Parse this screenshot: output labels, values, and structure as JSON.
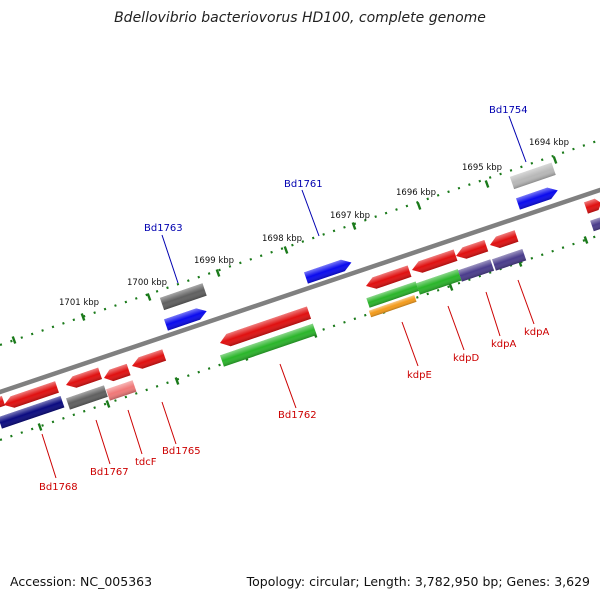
{
  "title": "Bdellovibrio bacteriovorus HD100, complete genome",
  "footer": {
    "accession": "Accession: NC_005363",
    "summary": "Topology: circular; Length: 3,782,950 bp; Genes: 3,629"
  },
  "ruler": {
    "unit": "kbp",
    "ticks": [
      "1694 kbp",
      "1695 kbp",
      "1696 kbp",
      "1697 kbp",
      "1698 kbp",
      "1699 kbp",
      "1700 kbp",
      "1701 kbp"
    ]
  },
  "colors": {
    "red": "#e01010",
    "green": "#2ab52a",
    "blue": "#0a0aee",
    "navy": "#0a0a80",
    "gray": "#606060",
    "light_gray": "#b8b8b8",
    "pink": "#f07878",
    "purple": "#4a3c8c",
    "orange": "#f39a1a",
    "label_blue": "#0000b0",
    "label_red": "#cc0000",
    "tick_green": "#1a7a1a"
  },
  "labels": {
    "top": [
      "Bd1754",
      "Bd1761",
      "Bd1763"
    ],
    "bottom": [
      "kdpA",
      "kdpA",
      "kdpD",
      "kdpE",
      "Bd1762",
      "Bd1765",
      "tdcF",
      "Bd1767",
      "Bd1768"
    ]
  }
}
